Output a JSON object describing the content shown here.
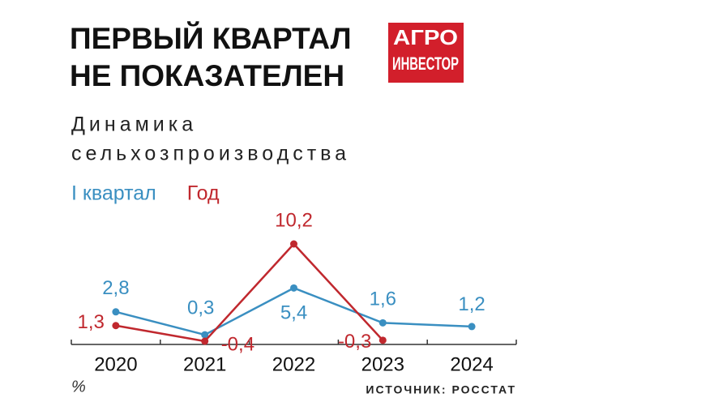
{
  "chart_data": {
    "type": "line",
    "title_lines": [
      "ПЕРВЫЙ КВАРТАЛ",
      "НЕ ПОКАЗАТЕЛЕН"
    ],
    "subtitle_lines": [
      "Динамика",
      "сельхозпроизводства"
    ],
    "logo_lines": [
      "АГРО",
      "ИНВЕСТОР"
    ],
    "categories": [
      "2020",
      "2021",
      "2022",
      "2023",
      "2024"
    ],
    "series": [
      {
        "name": "I квартал",
        "color": "#3a8fc1",
        "values": [
          2.8,
          0.3,
          5.4,
          1.6,
          1.2
        ],
        "value_labels": [
          "2,8",
          "0,3",
          "5,4",
          "1,6",
          "1,2"
        ]
      },
      {
        "name": "Год",
        "color": "#c0282e",
        "values": [
          1.3,
          -0.4,
          10.2,
          -0.3,
          null
        ],
        "value_labels": [
          "1,3",
          "-0,4",
          "10,2",
          "-0,3",
          null
        ]
      }
    ],
    "unit": "%",
    "source": "ИСТОЧНИК: РОССТАТ"
  }
}
